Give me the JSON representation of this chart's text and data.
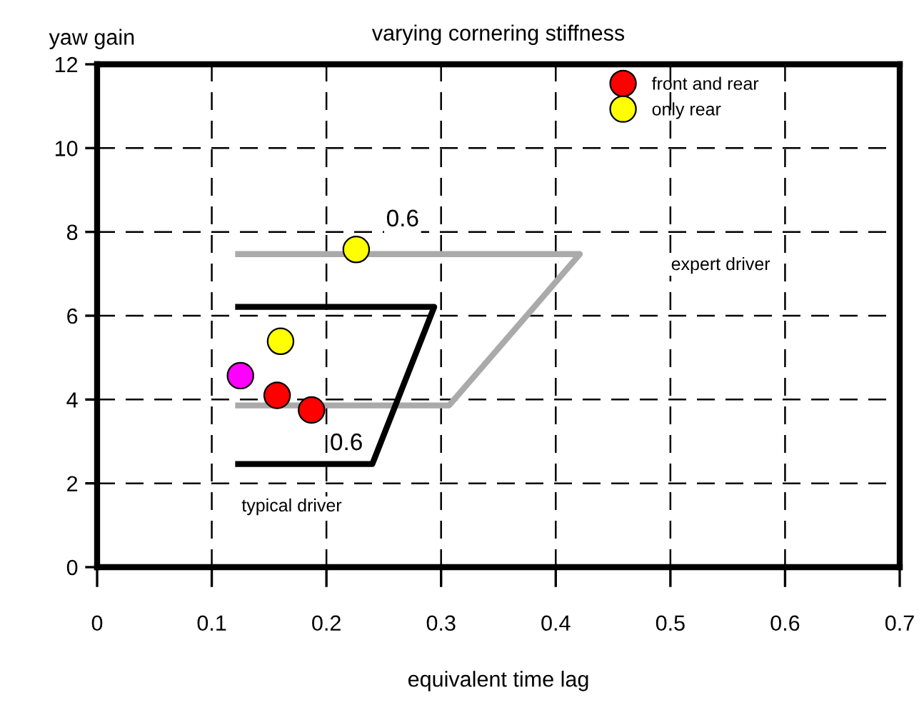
{
  "chart_data": {
    "type": "scatter",
    "title": "varying cornering stiffness",
    "xlabel": "equivalent time lag",
    "ylabel": "yaw gain",
    "xlim": [
      0,
      0.7
    ],
    "ylim": [
      0,
      12
    ],
    "xticks": [
      0,
      0.1,
      0.2,
      0.3,
      0.4,
      0.5,
      0.6,
      0.7
    ],
    "yticks": [
      0,
      2,
      4,
      6,
      8,
      10,
      12
    ],
    "grid": true,
    "legend": "top right",
    "series": [
      {
        "type": "line",
        "color": "#aaaaaa",
        "x": [
          0.123,
          0.421,
          0.307,
          0.123
        ],
        "values": [
          7.47,
          7.47,
          3.86,
          3.86
        ]
      },
      {
        "type": "line",
        "color": "#000000",
        "x": [
          0.123,
          0.294,
          0.24,
          0.123
        ],
        "values": [
          6.21,
          6.21,
          2.46,
          2.46
        ]
      },
      {
        "name": "front and rear",
        "color": "#ff0000",
        "marker": "circle",
        "x": [
          0.157,
          0.187
        ],
        "values": [
          4.1,
          3.75
        ]
      },
      {
        "name": "only rear",
        "color": "#ffff00",
        "marker": "circle",
        "x": [
          0.226,
          0.16
        ],
        "values": [
          7.58,
          5.39
        ]
      },
      {
        "color": "#ff00ff",
        "marker": "circle",
        "x": [
          0.125
        ],
        "values": [
          4.57
        ]
      }
    ],
    "annotations": [
      "0.6",
      "0.6",
      "expert driver",
      "typical driver"
    ]
  }
}
